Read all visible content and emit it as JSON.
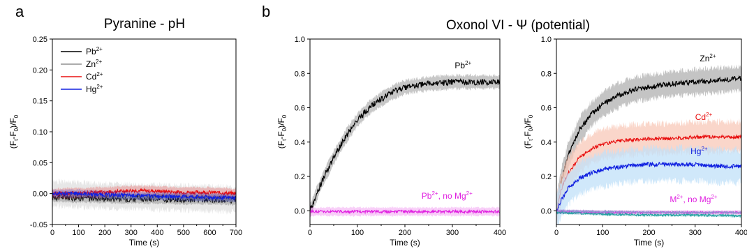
{
  "figure": {
    "panel_a_letter": "a",
    "panel_b_letter": "b",
    "title_a": "Pyranine - pH",
    "title_b": "Oxonol VI - Ψ (potential)"
  },
  "chart_data": [
    {
      "id": "a",
      "type": "line",
      "title": "Pyranine - pH",
      "xlabel": "Time (s)",
      "ylabel": "(Ft-F0)/F0",
      "xlim": [
        0,
        700
      ],
      "ylim": [
        -0.05,
        0.25
      ],
      "xticks": [
        0,
        100,
        200,
        300,
        400,
        500,
        600,
        700
      ],
      "yticks": [
        -0.05,
        0.0,
        0.05,
        0.1,
        0.15,
        0.2,
        0.25
      ],
      "legend_position": "top-left",
      "legend": [
        "Pb2+",
        "Zn2+",
        "Cd2+",
        "Hg2+"
      ],
      "series": [
        {
          "name": "Pb2+",
          "color": "#000000",
          "x": [
            0,
            100,
            200,
            300,
            400,
            500,
            600,
            700
          ],
          "values": [
            -0.005,
            -0.006,
            -0.007,
            -0.008,
            -0.008,
            -0.009,
            -0.009,
            -0.01
          ],
          "noise": 0.006,
          "band": 0.01
        },
        {
          "name": "Zn2+",
          "color": "#909090",
          "x": [
            0,
            100,
            200,
            300,
            400,
            500,
            600,
            700
          ],
          "values": [
            0.0,
            -0.002,
            -0.004,
            -0.005,
            -0.006,
            -0.007,
            -0.008,
            -0.01
          ],
          "noise": 0.004,
          "band": 0.025
        },
        {
          "name": "Cd2+",
          "color": "#e81010",
          "x": [
            0,
            100,
            200,
            300,
            400,
            500,
            600,
            700
          ],
          "values": [
            0.0,
            0.001,
            0.002,
            0.005,
            0.004,
            0.002,
            0.002,
            0.0
          ],
          "noise": 0.003,
          "band": 0.01
        },
        {
          "name": "Hg2+",
          "color": "#1020e0",
          "x": [
            0,
            100,
            200,
            300,
            400,
            500,
            600,
            700
          ],
          "values": [
            0.0,
            0.0,
            -0.002,
            -0.003,
            -0.004,
            -0.005,
            -0.006,
            -0.007
          ],
          "noise": 0.003,
          "band": 0.008
        }
      ]
    },
    {
      "id": "b1",
      "type": "line",
      "xlabel": "Time (s)",
      "ylabel": "(Ft-F0)/F0",
      "xlim": [
        0,
        400
      ],
      "ylim": [
        -0.08,
        1.0
      ],
      "xticks": [
        0,
        100,
        200,
        300,
        400
      ],
      "yticks": [
        0.0,
        0.2,
        0.4,
        0.6,
        0.8,
        1.0
      ],
      "annotations": [
        {
          "text": "Pb2+",
          "x": 305,
          "y": 0.83,
          "color": "#000000"
        },
        {
          "text": "Pb2+, no Mg2+",
          "x": 235,
          "y": 0.07,
          "color": "#e020e0"
        }
      ],
      "series": [
        {
          "name": "Pb2+",
          "color": "#000000",
          "x": [
            0,
            10,
            25,
            50,
            75,
            100,
            125,
            150,
            175,
            200,
            250,
            300,
            350,
            400
          ],
          "values": [
            0.0,
            0.07,
            0.17,
            0.31,
            0.43,
            0.53,
            0.6,
            0.65,
            0.69,
            0.72,
            0.74,
            0.75,
            0.75,
            0.75
          ],
          "noise": 0.018,
          "band": 0.05
        },
        {
          "name": "Pb2+, no Mg2+",
          "color": "#e020e0",
          "x": [
            0,
            100,
            200,
            300,
            400
          ],
          "values": [
            -0.005,
            -0.005,
            -0.005,
            -0.005,
            -0.005
          ],
          "noise": 0.008,
          "band": 0.03
        }
      ]
    },
    {
      "id": "b2",
      "type": "line",
      "xlabel": "Time (s)",
      "ylabel": "(Ft-F0)/F0",
      "xlim": [
        0,
        400
      ],
      "ylim": [
        -0.08,
        1.0
      ],
      "xticks": [
        0,
        100,
        200,
        300,
        400
      ],
      "yticks": [
        0.0,
        0.2,
        0.4,
        0.6,
        0.8,
        1.0
      ],
      "annotations": [
        {
          "text": "Zn2+",
          "x": 310,
          "y": 0.87,
          "color": "#000000"
        },
        {
          "text": "Cd2+",
          "x": 300,
          "y": 0.53,
          "color": "#e81010"
        },
        {
          "text": "Hg2+",
          "x": 290,
          "y": 0.33,
          "color": "#1020e0"
        },
        {
          "text": "M2+, no Mg2+",
          "x": 245,
          "y": 0.05,
          "color": "#e020e0"
        }
      ],
      "series": [
        {
          "name": "Zn2+",
          "color": "#000000",
          "x": [
            0,
            10,
            25,
            50,
            75,
            100,
            125,
            150,
            175,
            200,
            250,
            300,
            350,
            400
          ],
          "values": [
            0.0,
            0.17,
            0.32,
            0.47,
            0.56,
            0.62,
            0.66,
            0.69,
            0.71,
            0.72,
            0.74,
            0.75,
            0.76,
            0.77
          ],
          "noise": 0.015,
          "band": 0.09,
          "band_color": "#b0b0b0"
        },
        {
          "name": "Cd2+",
          "color": "#e81010",
          "x": [
            0,
            10,
            25,
            50,
            75,
            100,
            150,
            200,
            250,
            300,
            350,
            400
          ],
          "values": [
            0.0,
            0.12,
            0.22,
            0.31,
            0.36,
            0.39,
            0.41,
            0.42,
            0.42,
            0.43,
            0.43,
            0.43
          ],
          "noise": 0.01,
          "band": 0.11,
          "band_color": "#f8c8b8"
        },
        {
          "name": "Hg2+",
          "color": "#1020e0",
          "x": [
            0,
            10,
            25,
            50,
            75,
            100,
            150,
            200,
            250,
            300,
            350,
            400
          ],
          "values": [
            0.0,
            0.06,
            0.13,
            0.19,
            0.22,
            0.24,
            0.26,
            0.27,
            0.27,
            0.27,
            0.26,
            0.26
          ],
          "noise": 0.012,
          "band": 0.12,
          "band_color": "#c0e0f8"
        },
        {
          "name": "M2+, no Mg2+ (1)",
          "color": "#e020e0",
          "x": [
            0,
            100,
            200,
            300,
            400
          ],
          "values": [
            -0.005,
            -0.01,
            -0.01,
            -0.01,
            -0.01
          ],
          "noise": 0.006,
          "band": 0.015
        },
        {
          "name": "M2+, no Mg2+ (2)",
          "color": "#20a0a0",
          "x": [
            0,
            100,
            200,
            300,
            400
          ],
          "values": [
            -0.01,
            -0.02,
            -0.025,
            -0.025,
            -0.03
          ],
          "noise": 0.006,
          "band": 0.01
        },
        {
          "name": "M2+, no Mg2+ (3)",
          "color": "#9090d0",
          "x": [
            0,
            100,
            200,
            300,
            400
          ],
          "values": [
            0.0,
            -0.005,
            -0.008,
            -0.01,
            -0.01
          ],
          "noise": 0.005,
          "band": 0.01
        }
      ]
    }
  ]
}
